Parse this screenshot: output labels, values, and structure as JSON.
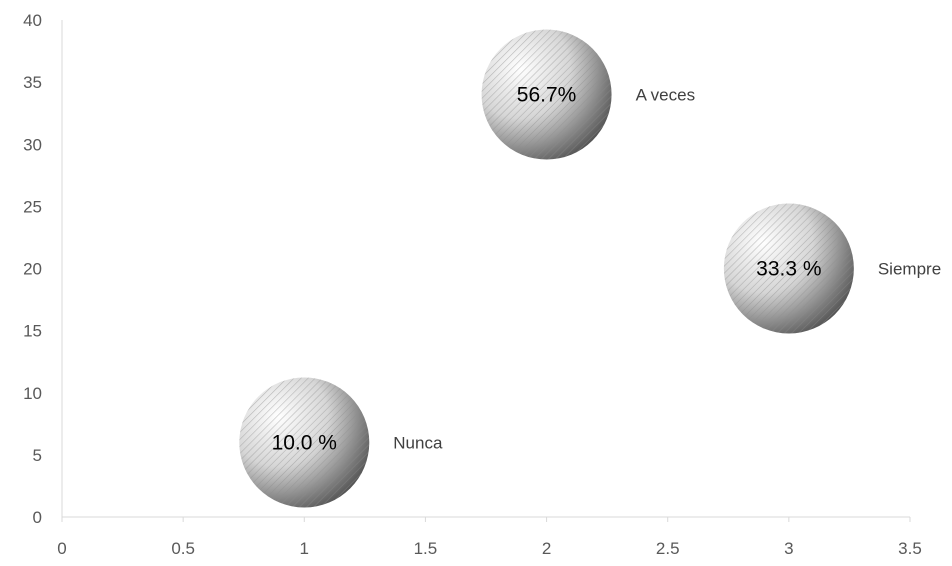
{
  "chart_data": {
    "type": "scatter",
    "subtype": "bubble",
    "title": "",
    "xlabel": "",
    "ylabel": "",
    "xlim": [
      0,
      3.5
    ],
    "ylim": [
      0,
      40
    ],
    "x_ticks": [
      "0",
      "0.5",
      "1",
      "1.5",
      "2",
      "2.5",
      "3",
      "3.5"
    ],
    "y_ticks": [
      "0",
      "5",
      "10",
      "15",
      "20",
      "25",
      "30",
      "35",
      "40"
    ],
    "grid": false,
    "legend": "none",
    "points": [
      {
        "x": 1,
        "y": 6,
        "label": "10.0 %",
        "category": "Nunca"
      },
      {
        "x": 2,
        "y": 34,
        "label": "56.7%",
        "category": "A veces"
      },
      {
        "x": 3,
        "y": 20,
        "label": "33.3 %",
        "category": "Siempre"
      }
    ],
    "colors": {
      "bubble_light": "#ffffff",
      "bubble_dark": "#3a3a3a",
      "hatch": "#9a9a9a",
      "axis": "#d9d9d9"
    }
  }
}
